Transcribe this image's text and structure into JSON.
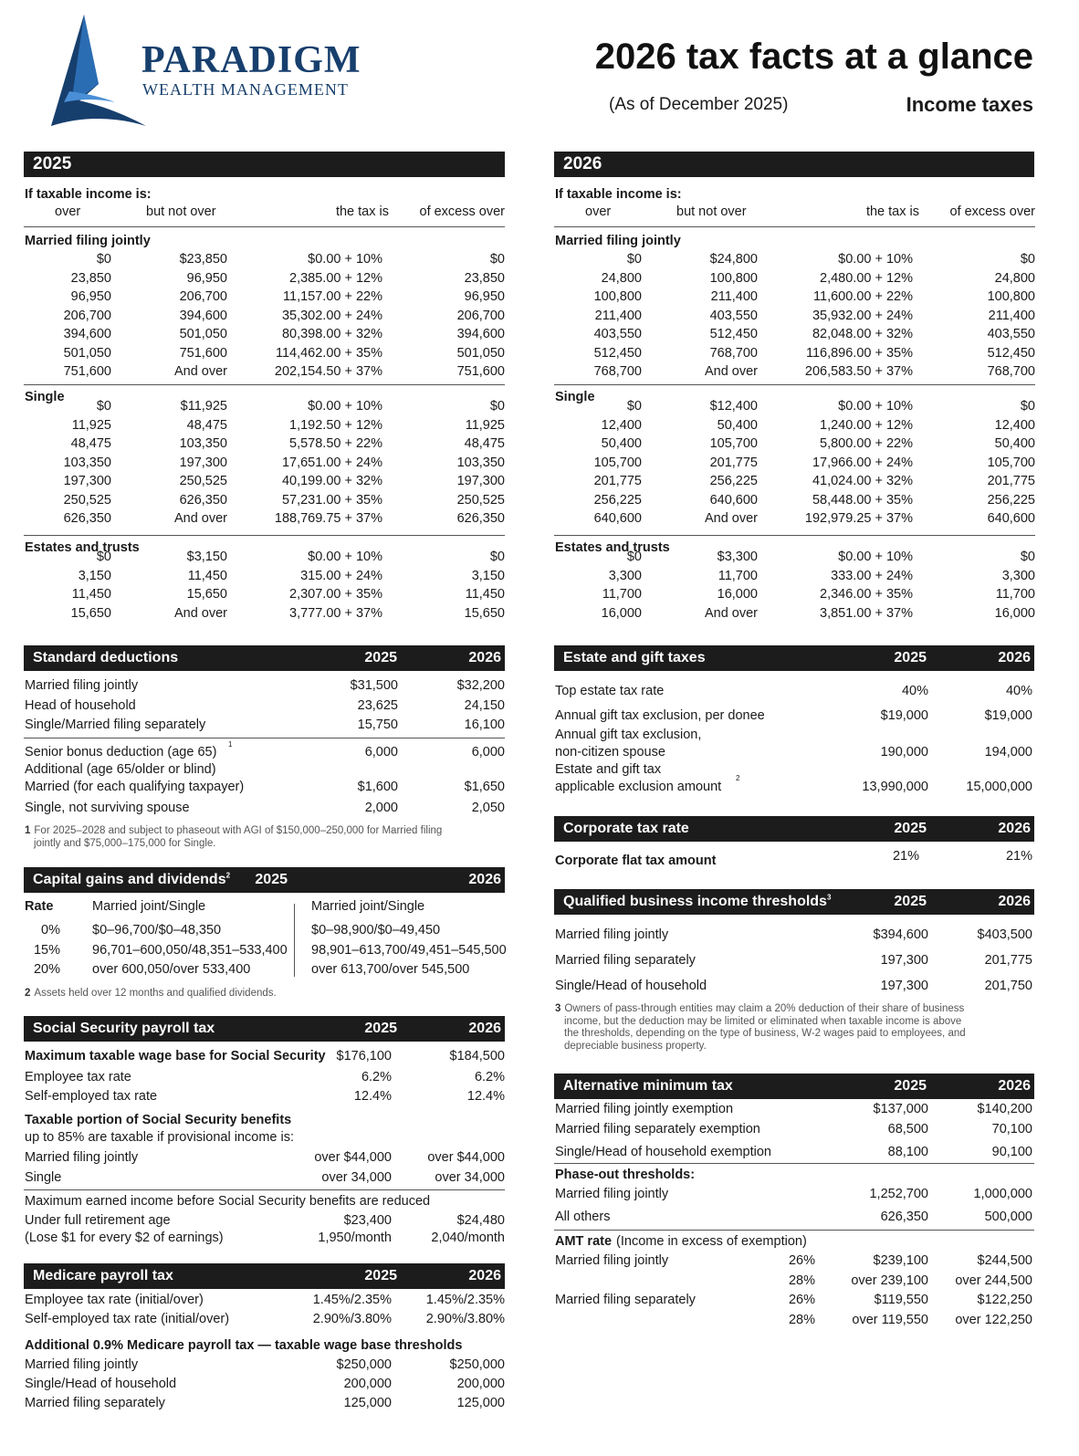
{
  "header": {
    "brand_name": "PARADIGM",
    "brand_sub": "WEALTH MANAGEMENT",
    "title": "2026 tax facts at a glance",
    "as_of": "(As of December 2025)",
    "section": "Income taxes"
  },
  "income": [
    {
      "year": "2025",
      "intro": "If taxable income is:",
      "cols": [
        "over",
        "but not over",
        "the tax is",
        "of excess over"
      ],
      "groups": [
        {
          "name": "Married filing jointly",
          "rows": [
            [
              "$0",
              "$23,850",
              "$0.00 + 10%",
              "$0"
            ],
            [
              "23,850",
              "96,950",
              "2,385.00 + 12%",
              "23,850"
            ],
            [
              "96,950",
              "206,700",
              "11,157.00 + 22%",
              "96,950"
            ],
            [
              "206,700",
              "394,600",
              "35,302.00 + 24%",
              "206,700"
            ],
            [
              "394,600",
              "501,050",
              "80,398.00 + 32%",
              "394,600"
            ],
            [
              "501,050",
              "751,600",
              "114,462.00 + 35%",
              "501,050"
            ],
            [
              "751,600",
              "And over",
              "202,154.50 + 37%",
              "751,600"
            ]
          ]
        },
        {
          "name": "Single",
          "rows": [
            [
              "$0",
              "$11,925",
              "$0.00 + 10%",
              "$0"
            ],
            [
              "11,925",
              "48,475",
              "1,192.50 + 12%",
              "11,925"
            ],
            [
              "48,475",
              "103,350",
              "5,578.50 + 22%",
              "48,475"
            ],
            [
              "103,350",
              "197,300",
              "17,651.00 + 24%",
              "103,350"
            ],
            [
              "197,300",
              "250,525",
              "40,199.00 + 32%",
              "197,300"
            ],
            [
              "250,525",
              "626,350",
              "57,231.00 + 35%",
              "250,525"
            ],
            [
              "626,350",
              "And over",
              "188,769.75 + 37%",
              "626,350"
            ]
          ]
        },
        {
          "name": "Estates and trusts",
          "rows": [
            [
              "$0",
              "$3,150",
              "$0.00 + 10%",
              "$0"
            ],
            [
              "3,150",
              "11,450",
              "315.00 + 24%",
              "3,150"
            ],
            [
              "11,450",
              "15,650",
              "2,307.00 + 35%",
              "11,450"
            ],
            [
              "15,650",
              "And over",
              "3,777.00 + 37%",
              "15,650"
            ]
          ]
        }
      ]
    },
    {
      "year": "2026",
      "intro": "If taxable income is:",
      "cols": [
        "over",
        "but not over",
        "the tax is",
        "of excess over"
      ],
      "groups": [
        {
          "name": "Married filing jointly",
          "rows": [
            [
              "$0",
              "$24,800",
              "$0.00 + 10%",
              "$0"
            ],
            [
              "24,800",
              "100,800",
              "2,480.00 + 12%",
              "24,800"
            ],
            [
              "100,800",
              "211,400",
              "11,600.00 + 22%",
              "100,800"
            ],
            [
              "211,400",
              "403,550",
              "35,932.00 + 24%",
              "211,400"
            ],
            [
              "403,550",
              "512,450",
              "82,048.00 + 32%",
              "403,550"
            ],
            [
              "512,450",
              "768,700",
              "116,896.00 + 35%",
              "512,450"
            ],
            [
              "768,700",
              "And over",
              "206,583.50 + 37%",
              "768,700"
            ]
          ]
        },
        {
          "name": "Single",
          "rows": [
            [
              "$0",
              "$12,400",
              "$0.00 + 10%",
              "$0"
            ],
            [
              "12,400",
              "50,400",
              "1,240.00 + 12%",
              "12,400"
            ],
            [
              "50,400",
              "105,700",
              "5,800.00 + 22%",
              "50,400"
            ],
            [
              "105,700",
              "201,775",
              "17,966.00 + 24%",
              "105,700"
            ],
            [
              "201,775",
              "256,225",
              "41,024.00 + 32%",
              "201,775"
            ],
            [
              "256,225",
              "640,600",
              "58,448.00 + 35%",
              "256,225"
            ],
            [
              "640,600",
              "And over",
              "192,979.25 + 37%",
              "640,600"
            ]
          ]
        },
        {
          "name": "Estates and trusts",
          "rows": [
            [
              "$0",
              "$3,300",
              "$0.00 + 10%",
              "$0"
            ],
            [
              "3,300",
              "11,700",
              "333.00 + 24%",
              "3,300"
            ],
            [
              "11,700",
              "16,000",
              "2,346.00 + 35%",
              "11,700"
            ],
            [
              "16,000",
              "And over",
              "3,851.00 + 37%",
              "16,000"
            ]
          ]
        }
      ]
    }
  ],
  "standard": {
    "title": "Standard deductions",
    "y1": "2025",
    "y2": "2026",
    "rows": [
      [
        "Married filing jointly",
        "$31,500",
        "$32,200"
      ],
      [
        "Head of household",
        "23,625",
        "24,150"
      ],
      [
        "Single/Married filing separately",
        "15,750",
        "16,100"
      ]
    ],
    "senior": [
      "Senior bonus deduction (age 65)",
      "6,000",
      "6,000"
    ],
    "senior_sup": "1",
    "additional": "Additional (age 65/older or blind)",
    "add_rows": [
      [
        "Married (for each qualifying taxpayer)",
        "$1,600",
        "$1,650"
      ],
      [
        "Single, not surviving spouse",
        "2,000",
        "2,050"
      ]
    ],
    "fn_num": "1",
    "fn_text": "For 2025–2028 and subject to phaseout with AGI of $150,000–250,000 for Married filing",
    "fn_text2": "jointly and $75,000–175,000 for Single."
  },
  "capital": {
    "title": "Capital gains and dividends",
    "sup": "2",
    "y1": "2025",
    "y2": "2026",
    "rate_label": "Rate",
    "col1": "Married joint/Single",
    "col2": "Married joint/Single",
    "rows": [
      [
        "0%",
        "$0–96,700/$0–48,350",
        "$0–98,900/$0–49,450"
      ],
      [
        "15%",
        "96,701–600,050/48,351–533,400",
        "98,901–613,700/49,451–545,500"
      ],
      [
        "20%",
        "over 600,050/over 533,400",
        "over 613,700/over 545,500"
      ]
    ],
    "fn_num": "2",
    "fn_text": "Assets held over 12 months and qualified dividends."
  },
  "social": {
    "title": "Social Security payroll tax",
    "y1": "2025",
    "y2": "2026",
    "wage_base": [
      "Maximum taxable wage base for Social Security",
      "$176,100",
      "$184,500"
    ],
    "rows": [
      [
        "Employee tax rate",
        "6.2%",
        "6.2%"
      ],
      [
        "Self-employed tax rate",
        "12.4%",
        "12.4%"
      ]
    ],
    "portion_title": "Taxable portion of Social Security benefits",
    "portion_sub": "up to 85% are taxable if provisional income is:",
    "portion_rows": [
      [
        "Married filing jointly",
        "over $44,000",
        "over $44,000"
      ],
      [
        "Single",
        "over  34,000",
        "over  34,000"
      ]
    ],
    "earned_title": "Maximum earned income before Social Security benefits are reduced",
    "earned_rows": [
      [
        "Under full retirement age",
        "$23,400",
        "$24,480"
      ],
      [
        "(Lose $1 for every $2 of earnings)",
        "1,950/month",
        "2,040/month"
      ]
    ]
  },
  "medicare": {
    "title": "Medicare payroll tax",
    "y1": "2025",
    "y2": "2026",
    "rows": [
      [
        "Employee tax rate (initial/over)",
        "1.45%/2.35%",
        "1.45%/2.35%"
      ],
      [
        "Self-employed tax rate (initial/over)",
        "2.90%/3.80%",
        "2.90%/3.80%"
      ]
    ],
    "additional_title": "Additional 0.9% Medicare payroll tax — taxable wage base thresholds",
    "add_rows": [
      [
        "Married filing jointly",
        "$250,000",
        "$250,000"
      ],
      [
        "Single/Head of household",
        "200,000",
        "200,000"
      ],
      [
        "Married filing separately",
        "125,000",
        "125,000"
      ]
    ]
  },
  "estate": {
    "title": "Estate and gift taxes",
    "y1": "2025",
    "y2": "2026",
    "top_rate": [
      "Top estate tax rate",
      "40%",
      "40%"
    ],
    "annual": [
      "Annual gift tax exclusion, per donee",
      "$19,000",
      "$19,000"
    ],
    "noncitizen_l1": "Annual gift tax exclusion,",
    "noncitizen": [
      "non-citizen spouse",
      "190,000",
      "194,000"
    ],
    "exclusion_l1": "Estate and gift tax",
    "exclusion": [
      "applicable exclusion amount",
      "13,990,000",
      "15,000,000"
    ],
    "exclusion_sup": "2"
  },
  "corporate": {
    "title": "Corporate tax rate",
    "y1": "2025",
    "y2": "2026",
    "row": [
      "Corporate flat tax amount",
      "21%",
      "21%"
    ]
  },
  "qbi": {
    "title": "Qualified business income thresholds",
    "sup": "3",
    "y1": "2025",
    "y2": "2026",
    "rows": [
      [
        "Married filing jointly",
        "$394,600",
        "$403,500"
      ],
      [
        "Married filing separately",
        "197,300",
        "201,775"
      ],
      [
        "Single/Head of household",
        "197,300",
        "201,750"
      ]
    ],
    "fn_num": "3",
    "fn_lines": [
      "Owners of pass-through entities may claim a 20% deduction of their share of business",
      "income, but the deduction may be limited or eliminated when taxable income is above",
      "the thresholds, depending on the type of business, W-2 wages paid to employees, and",
      "depreciable business property."
    ]
  },
  "amt": {
    "title": "Alternative minimum tax",
    "y1": "2025",
    "y2": "2026",
    "rows": [
      [
        "Married filing jointly exemption",
        "$137,000",
        "$140,200"
      ],
      [
        "Married filing separately exemption",
        "68,500",
        "70,100"
      ],
      [
        "Single/Head of household exemption",
        "88,100",
        "90,100"
      ]
    ],
    "phase_title": "Phase-out thresholds:",
    "phase_rows": [
      [
        "Married filing jointly",
        "1,252,700",
        "1,000,000"
      ],
      [
        "All others",
        "626,350",
        "500,000"
      ]
    ],
    "rate_title": "AMT rate",
    "rate_sub": "(Income in excess of exemption)",
    "rate_rows": [
      [
        "Married filing jointly",
        "26%",
        "$239,100",
        "$244,500"
      ],
      [
        "",
        "28%",
        "over 239,100",
        "over 244,500"
      ],
      [
        "Married filing separately",
        "26%",
        "$119,550",
        "$122,250"
      ],
      [
        "",
        "28%",
        "over 119,550",
        "over 122,250"
      ]
    ]
  }
}
